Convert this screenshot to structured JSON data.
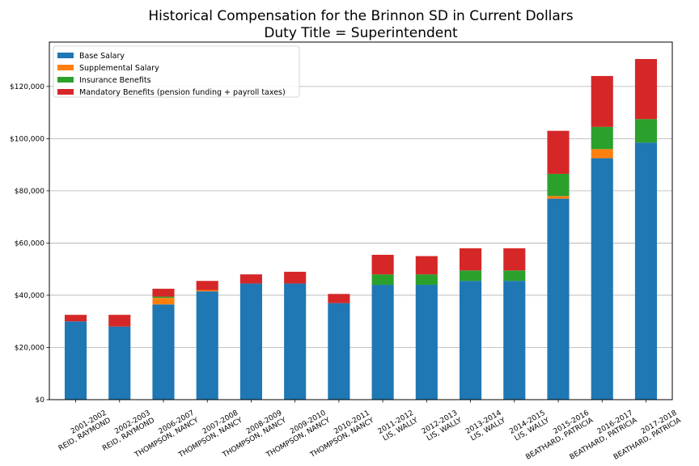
{
  "chart_data": {
    "type": "bar",
    "stacked": true,
    "title": "Historical Compensation for the Brinnon SD in Current Dollars",
    "subtitle": "Duty Title = Superintendent",
    "xlabel": "",
    "ylabel": "",
    "ylim": [
      0,
      137000
    ],
    "yticks": [
      0,
      20000,
      40000,
      60000,
      80000,
      100000,
      120000
    ],
    "ytick_labels": [
      "$0",
      "$20,000",
      "$40,000",
      "$60,000",
      "$80,000",
      "$100,000",
      "$120,000"
    ],
    "grid": "horizontal",
    "legend_position": "top-left",
    "categories": [
      [
        "2001-2002",
        "REID, RAYMOND"
      ],
      [
        "2002-2003",
        "REID, RAYMOND"
      ],
      [
        "2006-2007",
        "THOMPSON, NANCY"
      ],
      [
        "2007-2008",
        "THOMPSON, NANCY"
      ],
      [
        "2008-2009",
        "THOMPSON, NANCY"
      ],
      [
        "2009-2010",
        "THOMPSON, NANCY"
      ],
      [
        "2010-2011",
        "THOMPSON, NANCY"
      ],
      [
        "2011-2012",
        "LIS, WALLY"
      ],
      [
        "2012-2013",
        "LIS, WALLY"
      ],
      [
        "2013-2014",
        "LIS, WALLY"
      ],
      [
        "2014-2015",
        "LIS, WALLY"
      ],
      [
        "2015-2016",
        "BEATHARD, PATRICIA"
      ],
      [
        "2016-2017",
        "BEATHARD, PATRICIA"
      ],
      [
        "2017-2018",
        "BEATHARD, PATRICIA"
      ]
    ],
    "series": [
      {
        "name": "Base Salary",
        "color": "#1f77b4",
        "values": [
          30000,
          28000,
          36500,
          41500,
          44500,
          44500,
          37000,
          44000,
          44000,
          45500,
          45500,
          77000,
          92500,
          98500
        ]
      },
      {
        "name": "Supplemental Salary",
        "color": "#ff7f0e",
        "values": [
          0,
          0,
          2500,
          500,
          0,
          0,
          0,
          0,
          0,
          0,
          0,
          1000,
          3500,
          0
        ]
      },
      {
        "name": "Insurance Benefits",
        "color": "#2ca02c",
        "values": [
          0,
          0,
          500,
          0,
          0,
          0,
          0,
          4000,
          4000,
          4000,
          4000,
          8500,
          8500,
          9000
        ]
      },
      {
        "name": "Mandatory Benefits (pension funding + payroll taxes)",
        "color": "#d62728",
        "values": [
          2500,
          4500,
          3000,
          3500,
          3500,
          4500,
          3500,
          7500,
          7000,
          8500,
          8500,
          16500,
          19500,
          23000
        ]
      }
    ]
  }
}
